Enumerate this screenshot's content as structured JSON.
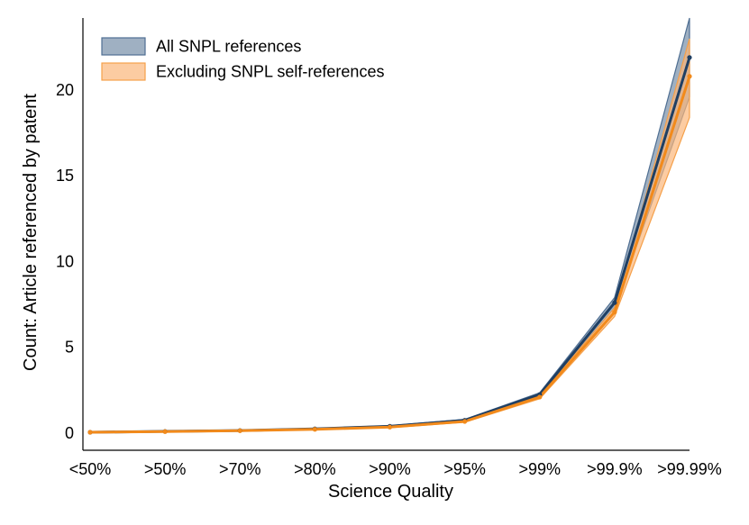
{
  "chart_data": {
    "type": "line",
    "xlabel": "Science Quality",
    "ylabel": "Count: Article referenced by patent",
    "categories": [
      "<50%",
      ">50%",
      ">70%",
      ">80%",
      ">90%",
      ">95%",
      ">99%",
      ">99.9%",
      ">99.99%"
    ],
    "ylim": [
      -1,
      24.2
    ],
    "yticks": [
      0,
      5,
      10,
      15,
      20
    ],
    "grid": false,
    "legend_position": "top-left",
    "series": [
      {
        "name": "All SNPL references",
        "values": [
          0.05,
          0.1,
          0.15,
          0.25,
          0.4,
          0.75,
          2.25,
          7.6,
          21.9
        ],
        "lower": [
          0.04,
          0.08,
          0.13,
          0.22,
          0.37,
          0.7,
          2.15,
          7.3,
          19.6
        ],
        "upper": [
          0.06,
          0.12,
          0.17,
          0.28,
          0.43,
          0.8,
          2.35,
          7.9,
          24.2
        ],
        "line_color": "#1f3f63",
        "band_color": "#7f95ad",
        "band_edge_color": "#4f6f93"
      },
      {
        "name": "Excluding SNPL self-references",
        "values": [
          0.05,
          0.09,
          0.14,
          0.22,
          0.35,
          0.68,
          2.1,
          7.05,
          20.8
        ],
        "lower": [
          0.04,
          0.07,
          0.12,
          0.19,
          0.32,
          0.63,
          2.0,
          6.8,
          18.4
        ],
        "upper": [
          0.06,
          0.11,
          0.16,
          0.25,
          0.38,
          0.73,
          2.2,
          7.3,
          23.0
        ],
        "line_color": "#f28a1b",
        "band_color": "#fbb77a",
        "band_edge_color": "#f5a04a"
      }
    ]
  }
}
